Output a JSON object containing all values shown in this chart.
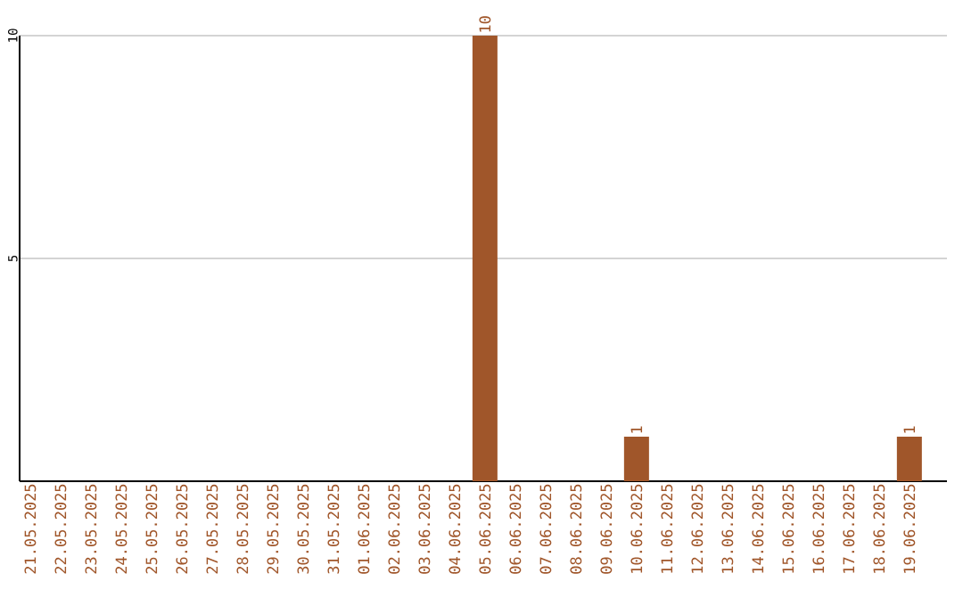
{
  "chart_data": {
    "type": "bar",
    "categories": [
      "21.05.2025",
      "22.05.2025",
      "23.05.2025",
      "24.05.2025",
      "25.05.2025",
      "26.05.2025",
      "27.05.2025",
      "28.05.2025",
      "29.05.2025",
      "30.05.2025",
      "31.05.2025",
      "01.06.2025",
      "02.06.2025",
      "03.06.2025",
      "04.06.2025",
      "05.06.2025",
      "06.06.2025",
      "07.06.2025",
      "08.06.2025",
      "09.06.2025",
      "10.06.2025",
      "11.06.2025",
      "12.06.2025",
      "13.06.2025",
      "14.06.2025",
      "15.06.2025",
      "16.06.2025",
      "17.06.2025",
      "18.06.2025",
      "19.06.2025"
    ],
    "values": [
      0,
      0,
      0,
      0,
      0,
      0,
      0,
      0,
      0,
      0,
      0,
      0,
      0,
      0,
      0,
      10,
      0,
      0,
      0,
      0,
      1,
      0,
      0,
      0,
      0,
      0,
      0,
      0,
      0,
      1
    ],
    "value_labels": [
      null,
      null,
      null,
      null,
      null,
      null,
      null,
      null,
      null,
      null,
      null,
      null,
      null,
      null,
      null,
      "10",
      null,
      null,
      null,
      null,
      "1",
      null,
      null,
      null,
      null,
      null,
      null,
      null,
      null,
      "1"
    ],
    "color": "#a0562a",
    "ylim": [
      0,
      10
    ],
    "yticks": [
      5,
      10
    ],
    "grid": "y"
  }
}
